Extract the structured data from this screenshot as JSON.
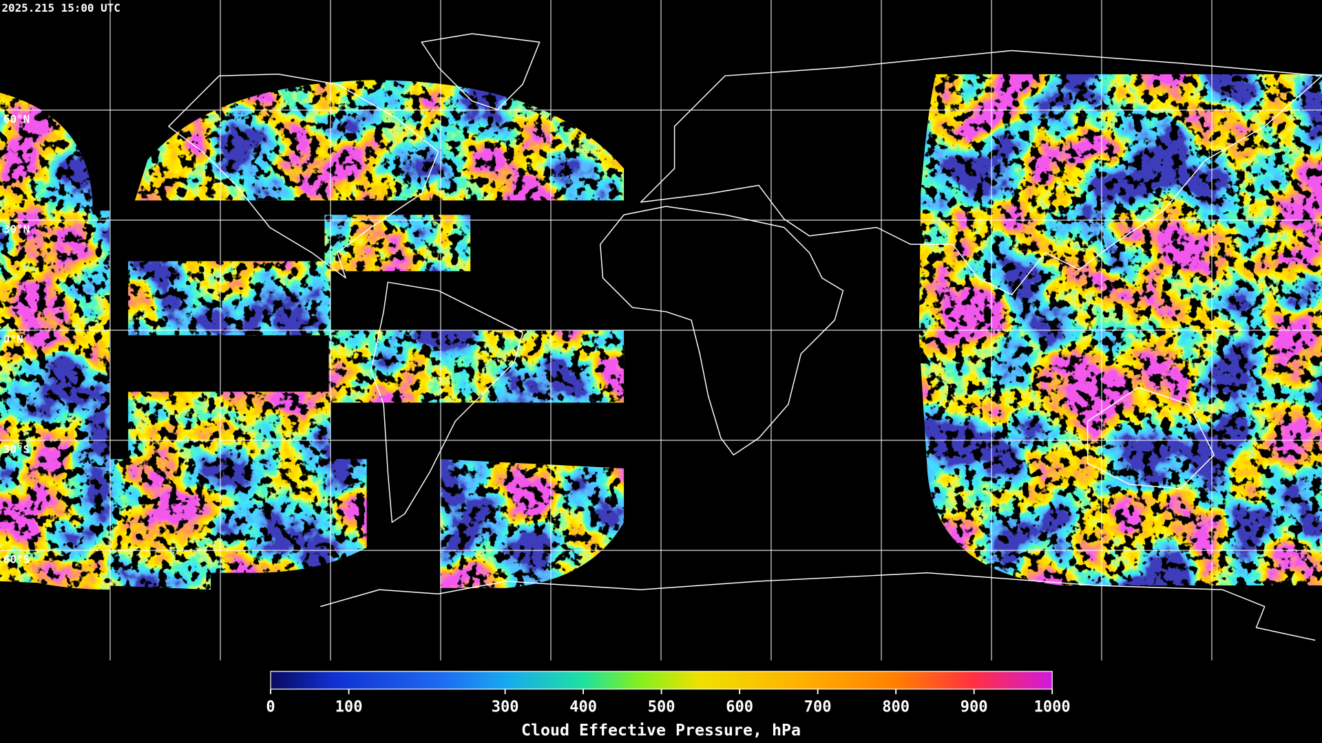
{
  "header": {
    "timestamp": "2025.215 15:00 UTC"
  },
  "map": {
    "latitude_labels": [
      "60°N",
      "30°N",
      "0°N",
      "30°S",
      "60°S"
    ]
  },
  "colorbar": {
    "title": "Cloud Effective Pressure, hPa",
    "range": [
      0,
      1000
    ],
    "ticks": [
      0,
      100,
      300,
      400,
      500,
      600,
      700,
      800,
      900,
      1000
    ]
  }
}
